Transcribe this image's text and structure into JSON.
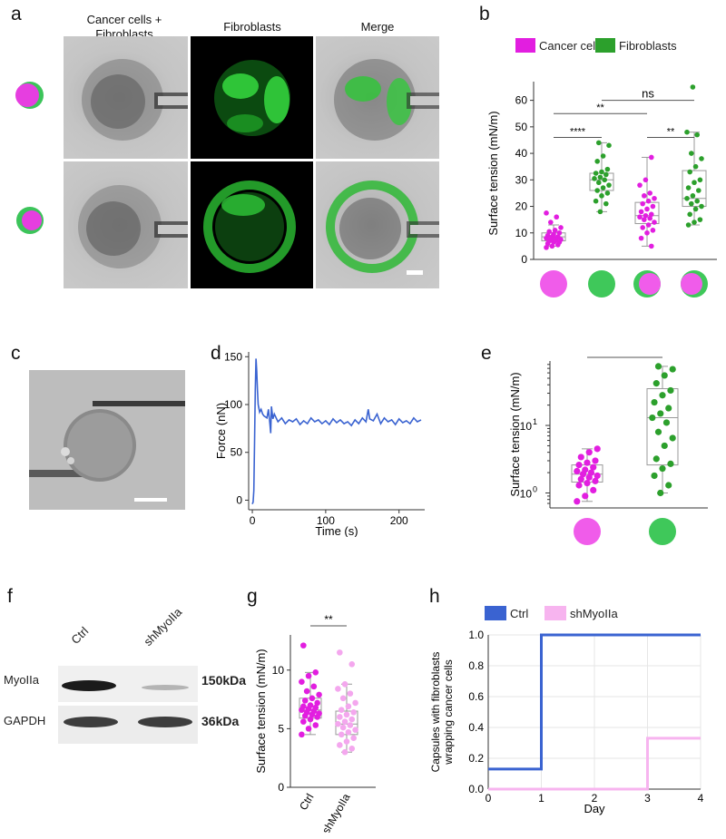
{
  "panel_letters": {
    "a": "a",
    "b": "b",
    "c": "c",
    "d": "d",
    "e": "e",
    "f": "f",
    "g": "g",
    "h": "h"
  },
  "panel_a": {
    "col1_line1": "Cancer cells +",
    "col1_line2": "Fibroblasts",
    "col2": "Fibroblasts",
    "col3": "Merge"
  },
  "panel_f": {
    "lanes": [
      "Ctrl",
      "shMyoIIa"
    ],
    "rows": [
      {
        "name": "MyoIIa",
        "kda": "150kDa"
      },
      {
        "name": "GAPDH",
        "kda": "36kDa"
      }
    ]
  },
  "chart_data": [
    {
      "id": "b",
      "type": "scatter",
      "legend": [
        {
          "name": "Cancer cells",
          "color": "#e21ee0"
        },
        {
          "name": "Fibroblasts",
          "color": "#2ca02c"
        }
      ],
      "ylabel": "Surface tension (mN/m)",
      "ylim": [
        0,
        65
      ],
      "yticks": [
        0,
        10,
        20,
        30,
        40,
        50,
        60
      ],
      "groups": [
        {
          "color": "#e21ee0",
          "box": [
            5,
            7,
            8.5,
            10,
            13
          ],
          "values": [
            4.5,
            5,
            5.5,
            6,
            6.5,
            6.5,
            7,
            7,
            7.5,
            7.5,
            8,
            8,
            8.5,
            8.5,
            9,
            9.5,
            10,
            10.5,
            11,
            12,
            14,
            16,
            17.5
          ]
        },
        {
          "color": "#2ca02c",
          "box": [
            18,
            26,
            30,
            32.5,
            44
          ],
          "values": [
            18,
            21,
            22,
            24,
            25,
            26,
            27,
            28,
            29,
            30,
            30.5,
            31,
            32,
            32.5,
            33,
            34,
            37,
            39,
            43,
            44
          ]
        },
        {
          "color": "#e21ee0",
          "box": [
            5,
            13.5,
            16.5,
            21.5,
            38.5
          ],
          "values": [
            5,
            8,
            10,
            11,
            12,
            13,
            14,
            15,
            15.5,
            16,
            16.5,
            17,
            18,
            19,
            20,
            21,
            22,
            23,
            24,
            25,
            28,
            30,
            38.5
          ]
        },
        {
          "color": "#2ca02c",
          "box": [
            13,
            20,
            23,
            33.5,
            48
          ],
          "values": [
            13,
            14,
            15,
            17,
            19,
            20,
            21,
            22,
            23,
            24,
            26,
            27,
            29,
            30,
            33,
            35,
            38,
            40,
            47,
            48,
            65
          ]
        }
      ],
      "sig": [
        {
          "from": 0,
          "to": 1,
          "label": "****",
          "y": 46
        },
        {
          "from": 2,
          "to": 3,
          "label": "**",
          "y": 46
        },
        {
          "from": 0,
          "to": 2,
          "label": "**",
          "y": 55
        },
        {
          "from": 1,
          "to": 3,
          "label": "ns",
          "y": 60
        }
      ]
    },
    {
      "id": "d",
      "type": "line",
      "color": "#3a63d1",
      "xlabel": "Time (s)",
      "ylabel": "Force (nN)",
      "xlim": [
        -5,
        235
      ],
      "ylim": [
        -10,
        155
      ],
      "xticks": [
        0,
        100,
        200
      ],
      "yticks": [
        0,
        50,
        100,
        150
      ],
      "x": [
        0,
        1,
        2,
        3,
        4,
        5,
        6,
        7,
        8,
        9,
        10,
        12,
        14,
        16,
        18,
        20,
        22,
        24,
        25,
        26,
        28,
        30,
        35,
        40,
        45,
        50,
        55,
        60,
        65,
        70,
        75,
        80,
        85,
        90,
        95,
        100,
        105,
        110,
        115,
        120,
        125,
        130,
        135,
        140,
        145,
        150,
        155,
        158,
        160,
        165,
        170,
        175,
        180,
        185,
        190,
        195,
        200,
        205,
        210,
        215,
        220,
        225,
        230
      ],
      "y": [
        -4,
        -2,
        10,
        60,
        115,
        148,
        135,
        115,
        100,
        96,
        92,
        95,
        90,
        88,
        87,
        86,
        95,
        80,
        70,
        98,
        85,
        90,
        82,
        86,
        80,
        84,
        82,
        85,
        79,
        83,
        80,
        86,
        82,
        84,
        80,
        83,
        79,
        85,
        81,
        84,
        80,
        82,
        78,
        84,
        80,
        86,
        82,
        95,
        85,
        83,
        90,
        80,
        86,
        82,
        84,
        79,
        85,
        81,
        83,
        80,
        86,
        82,
        84
      ]
    },
    {
      "id": "e",
      "type": "scatter",
      "ylabel": "Surface tension (mN/m)",
      "yscale": "log",
      "ylim": [
        0.6,
        90
      ],
      "ytick_labels": [
        "10^0",
        "10^1"
      ],
      "groups": [
        {
          "color": "#e21ee0",
          "box": [
            0.75,
            1.45,
            1.9,
            2.6,
            4.5
          ],
          "values": [
            0.75,
            0.9,
            1.1,
            1.3,
            1.4,
            1.5,
            1.6,
            1.7,
            1.8,
            1.9,
            2.0,
            2.1,
            2.2,
            2.4,
            2.6,
            2.8,
            3.0,
            3.4,
            4.0,
            4.5
          ]
        },
        {
          "color": "#2ca02c",
          "box": [
            1.0,
            2.6,
            13,
            35,
            75
          ],
          "values": [
            1.0,
            1.3,
            1.8,
            2.3,
            2.7,
            3.2,
            5,
            6.5,
            8,
            11,
            13,
            15,
            18,
            22,
            28,
            33,
            42,
            55,
            68,
            75
          ]
        }
      ],
      "sig": [
        {
          "from": 0,
          "to": 1,
          "label": "***"
        }
      ]
    },
    {
      "id": "g",
      "type": "scatter",
      "ylabel": "Surface tension (mN/m)",
      "ylim": [
        0,
        13
      ],
      "yticks": [
        0,
        5,
        10
      ],
      "categories": [
        "Ctrl",
        "shMyoIIa"
      ],
      "groups": [
        {
          "color": "#e21ee0",
          "box": [
            4.5,
            5.9,
            6.6,
            7.6,
            9.8
          ],
          "values": [
            4.5,
            5.0,
            5.3,
            5.6,
            5.8,
            6.0,
            6.1,
            6.2,
            6.3,
            6.4,
            6.5,
            6.6,
            6.7,
            6.8,
            6.9,
            7.0,
            7.2,
            7.4,
            7.6,
            7.9,
            8.2,
            8.6,
            9.0,
            9.5,
            9.8,
            12.1
          ]
        },
        {
          "color": "#f4a7ee",
          "box": [
            3.0,
            4.5,
            5.4,
            6.5,
            8.8
          ],
          "values": [
            3.0,
            3.3,
            3.6,
            3.9,
            4.2,
            4.5,
            4.7,
            4.9,
            5.1,
            5.3,
            5.4,
            5.6,
            5.8,
            6.0,
            6.2,
            6.4,
            6.6,
            6.9,
            7.2,
            7.6,
            8.0,
            8.4,
            8.8,
            10.5,
            11.5
          ]
        }
      ],
      "sig": [
        {
          "from": 0,
          "to": 1,
          "label": "**"
        }
      ]
    },
    {
      "id": "h",
      "type": "line",
      "legend": [
        {
          "name": "Ctrl",
          "color": "#3a63d1"
        },
        {
          "name": "shMyoIIa",
          "color": "#f7b4ef"
        }
      ],
      "xlabel": "Day",
      "ylabel_line1": "Capsules with fibroblasts",
      "ylabel_line2": "wrapping cancer cells",
      "xlim": [
        0,
        4
      ],
      "ylim": [
        0,
        1
      ],
      "xticks": [
        0,
        1,
        2,
        3,
        4
      ],
      "yticks": [
        "0.0",
        "0.2",
        "0.4",
        "0.6",
        "0.8",
        "1.0"
      ],
      "series": [
        {
          "name": "Ctrl",
          "x": [
            0,
            1,
            1,
            4
          ],
          "y": [
            0.13,
            0.13,
            1.0,
            1.0
          ]
        },
        {
          "name": "shMyoIIa",
          "x": [
            0,
            3,
            3,
            4
          ],
          "y": [
            0,
            0,
            0.33,
            0.33
          ]
        }
      ]
    }
  ]
}
